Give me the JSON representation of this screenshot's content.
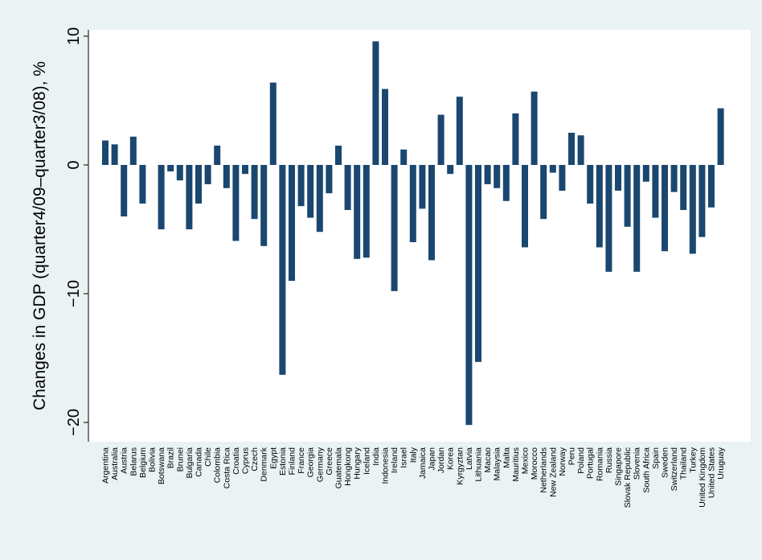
{
  "chart_data": {
    "type": "bar",
    "ylabel": "Changes in GDP (quarter4/09–quarter3/08), %",
    "xlabel": "",
    "ylim": [
      -21.5,
      10.5
    ],
    "yticks": [
      10,
      0,
      -10,
      -20
    ],
    "ytick_labels": [
      "10",
      "0",
      "−10",
      "−20"
    ],
    "grid": false,
    "bar_color": "#1a476f",
    "background_color": "#eaf2f3",
    "categories": [
      "Argentina",
      "Australia",
      "Austria",
      "Belarus",
      "Belgium",
      "Bolivia",
      "Botswana",
      "Brazil",
      "Brunei",
      "Bulgaria",
      "Canada",
      "Chile",
      "Colombia",
      "Costa Rica",
      "Croatia",
      "Cyprus",
      "Czech",
      "Denmark",
      "Egypt",
      "Estonia",
      "Finland",
      "France",
      "Georgia",
      "Germany",
      "Greece",
      "Guatemala",
      "Hongkong",
      "Hungary",
      "Iceland",
      "India",
      "Indonesia",
      "Ireland",
      "Israel",
      "Italy",
      "Jamaica",
      "Japan",
      "Jordan",
      "Korea",
      "Kyrgyztan",
      "Latvia",
      "Lithuania",
      "Macao",
      "Malaysia",
      "Malta",
      "Mauritius",
      "Mexico",
      "Morocco",
      "Netherlands",
      "New Zealand",
      "Norway",
      "Peru",
      "Poland",
      "Portugal",
      "Romania",
      "Russia",
      "Singapore",
      "Slovak Republic",
      "Slovenia",
      "South Africa",
      "Spain",
      "Sweden",
      "Switzerland",
      "Thailand",
      "Turkey",
      "United Kingdom",
      "United States",
      "Uruguay"
    ],
    "values": [
      1.9,
      1.6,
      -4.0,
      2.2,
      -3.0,
      0.0,
      -5.0,
      -0.5,
      -1.2,
      -5.0,
      -3.0,
      -1.5,
      1.5,
      -1.8,
      -5.9,
      -0.7,
      -4.2,
      -6.3,
      6.4,
      -16.3,
      -9.0,
      -3.2,
      -4.1,
      -5.2,
      -2.2,
      1.5,
      -3.5,
      -7.3,
      -7.2,
      9.6,
      5.9,
      -9.8,
      1.2,
      -6.0,
      -3.4,
      -7.4,
      3.9,
      -0.7,
      5.3,
      -20.2,
      -15.3,
      -1.5,
      -1.8,
      -2.8,
      4.0,
      -6.4,
      5.7,
      -4.2,
      -0.6,
      -2.0,
      2.5,
      2.3,
      -3.0,
      -6.4,
      -8.3,
      -2.0,
      -4.8,
      -8.3,
      -1.3,
      -4.1,
      -6.7,
      -2.1,
      -3.5,
      -6.9,
      -5.6,
      -3.3,
      4.4
    ]
  }
}
